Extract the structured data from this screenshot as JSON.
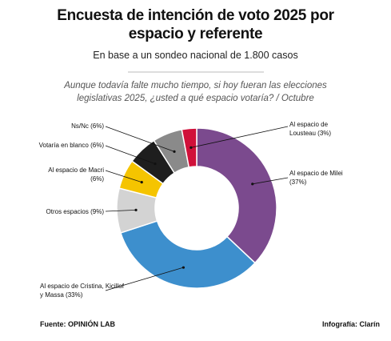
{
  "chart_data": {
    "type": "donut",
    "title": "Encuesta de intención de voto 2025 por espacio y referente",
    "subtitle": "En base a un sondeo nacional de 1.800 casos",
    "question": "Aunque todavía falte mucho tiempo, si hoy fueran las elecciones legislativas 2025, ¿usted a qué espacio votaría? / Octubre",
    "categories": [
      "Al espacio de Milei",
      "Al espacio de Cristina, Kicillof y Massa",
      "Otros espacios",
      "Al espacio de Macri",
      "Votaría en blanco",
      "Ns/Nc",
      "Al espacio de Lousteau"
    ],
    "values": [
      37,
      33,
      9,
      6,
      6,
      6,
      3
    ],
    "value_labels": [
      "(37%)",
      "(33%)",
      "(9%)",
      "(6%)",
      "(6%)",
      "(6%)",
      "(3%)"
    ],
    "colors": [
      "#7b4a8e",
      "#3d8fcd",
      "#d3d3d3",
      "#f5c400",
      "#1e1e1e",
      "#8a8a8a",
      "#d0103a"
    ],
    "source": "Fuente: OPINIÓN LAB",
    "credit": "Infografía: Clarín"
  }
}
